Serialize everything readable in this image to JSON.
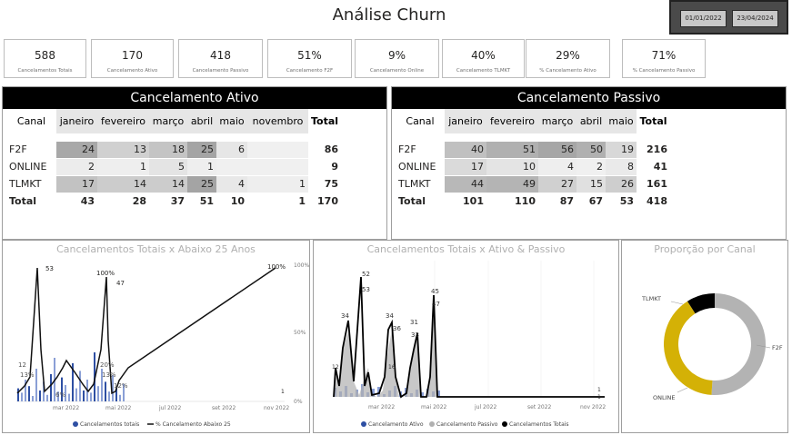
{
  "title": "Análise Churn",
  "date_filter": {
    "start": "01/01/2022",
    "end": "23/04/2024"
  },
  "kpis": [
    {
      "value": "588",
      "label": "Cancelamentos Totais"
    },
    {
      "value": "170",
      "label": "Cancelamento Ativo"
    },
    {
      "value": "418",
      "label": "Cancelamento Passivo"
    },
    {
      "value": "51%",
      "label": "Cancelamento F2F"
    },
    {
      "value": "9%",
      "label": "Cancelamento Online"
    },
    {
      "value": "40%",
      "label": "Cancelamento TLMKT"
    },
    {
      "value": "29%",
      "label": "% Cancelamento Ativo"
    },
    {
      "value": "71%",
      "label": "% Cancelamento Passivo"
    }
  ],
  "ativo": {
    "title": "Cancelamento Ativo",
    "headers": [
      "Canal",
      "janeiro",
      "fevereiro",
      "março",
      "abril",
      "maio",
      "novembro",
      "Total"
    ],
    "rows": [
      [
        "F2F",
        "24",
        "13",
        "18",
        "25",
        "6",
        "",
        "86"
      ],
      [
        "ONLINE",
        "2",
        "1",
        "5",
        "1",
        "",
        "",
        "9"
      ],
      [
        "TLMKT",
        "17",
        "14",
        "14",
        "25",
        "4",
        "1",
        "75"
      ]
    ],
    "total": [
      "Total",
      "43",
      "28",
      "37",
      "51",
      "10",
      "1",
      "170"
    ]
  },
  "passivo": {
    "title": "Cancelamento Passivo",
    "headers": [
      "Canal",
      "janeiro",
      "fevereiro",
      "março",
      "abril",
      "maio",
      "Total"
    ],
    "rows": [
      [
        "F2F",
        "40",
        "51",
        "56",
        "50",
        "19",
        "216"
      ],
      [
        "ONLINE",
        "17",
        "10",
        "4",
        "2",
        "8",
        "41"
      ],
      [
        "TLMKT",
        "44",
        "49",
        "27",
        "15",
        "26",
        "161"
      ]
    ],
    "total": [
      "Total",
      "101",
      "110",
      "87",
      "67",
      "53",
      "418"
    ]
  },
  "chart1": {
    "title": "Cancelamentos Totais x Abaixo 25 Anos",
    "x_ticks": [
      "mar 2022",
      "mai 2022",
      "jul 2022",
      "set 2022",
      "nov 2022"
    ],
    "y2_ticks": [
      "100%",
      "50%",
      "0%"
    ],
    "labels": [
      "53",
      "100%",
      "47",
      "12",
      "13%",
      "20%",
      "13%",
      "12%",
      "6%",
      "100%",
      "1"
    ],
    "legend": [
      "Cancelamentos totais",
      "% Cancelamento Abaixo 25"
    ]
  },
  "chart2": {
    "title": "Cancelamentos Totais x Ativo & Passivo",
    "x_ticks": [
      "mar 2022",
      "mai 2022",
      "jul 2022",
      "set 2022",
      "nov 2022"
    ],
    "labels": [
      "52",
      "53",
      "34",
      "34",
      "36",
      "31",
      "33",
      "45",
      "47",
      "12",
      "16",
      "1",
      "1"
    ],
    "legend": [
      "Cancelamento Ativo",
      "Cancelamento Passivo",
      "Cancelamentos Totais"
    ]
  },
  "chart3": {
    "title": "Proporção por Canal",
    "labels": {
      "tlmkt": "TLMKT",
      "f2f": "F2F",
      "online": "ONLINE"
    }
  },
  "chart_data": [
    {
      "type": "bar",
      "title": "Cancelamentos Totais x Abaixo 25 Anos",
      "series": [
        {
          "name": "Cancelamentos totais",
          "values": [
            12,
            53,
            20,
            13,
            47
          ]
        },
        {
          "name": "% Cancelamento Abaixo 25",
          "values": [
            13,
            100,
            20,
            12,
            100
          ]
        }
      ],
      "x_ticks": [
        "mar 2022",
        "mai 2022",
        "jul 2022",
        "set 2022",
        "nov 2022"
      ]
    },
    {
      "type": "line",
      "title": "Cancelamentos Totais x Ativo & Passivo",
      "series": [
        {
          "name": "Cancelamentos Totais",
          "values": [
            52,
            34,
            36,
            45,
            1
          ]
        },
        {
          "name": "Cancelamento Passivo",
          "values": [
            53,
            34,
            33,
            47,
            1
          ]
        },
        {
          "name": "Cancelamento Ativo",
          "values": [
            12,
            16,
            12,
            6,
            1
          ]
        }
      ],
      "x_ticks": [
        "mar 2022",
        "mai 2022",
        "jul 2022",
        "set 2022",
        "nov 2022"
      ]
    },
    {
      "type": "pie",
      "title": "Proporção por Canal",
      "categories": [
        "F2F",
        "TLMKT",
        "ONLINE"
      ],
      "values": [
        51,
        40,
        9
      ],
      "colors": [
        "#b3b3b3",
        "#d4b106",
        "#000000"
      ]
    }
  ]
}
